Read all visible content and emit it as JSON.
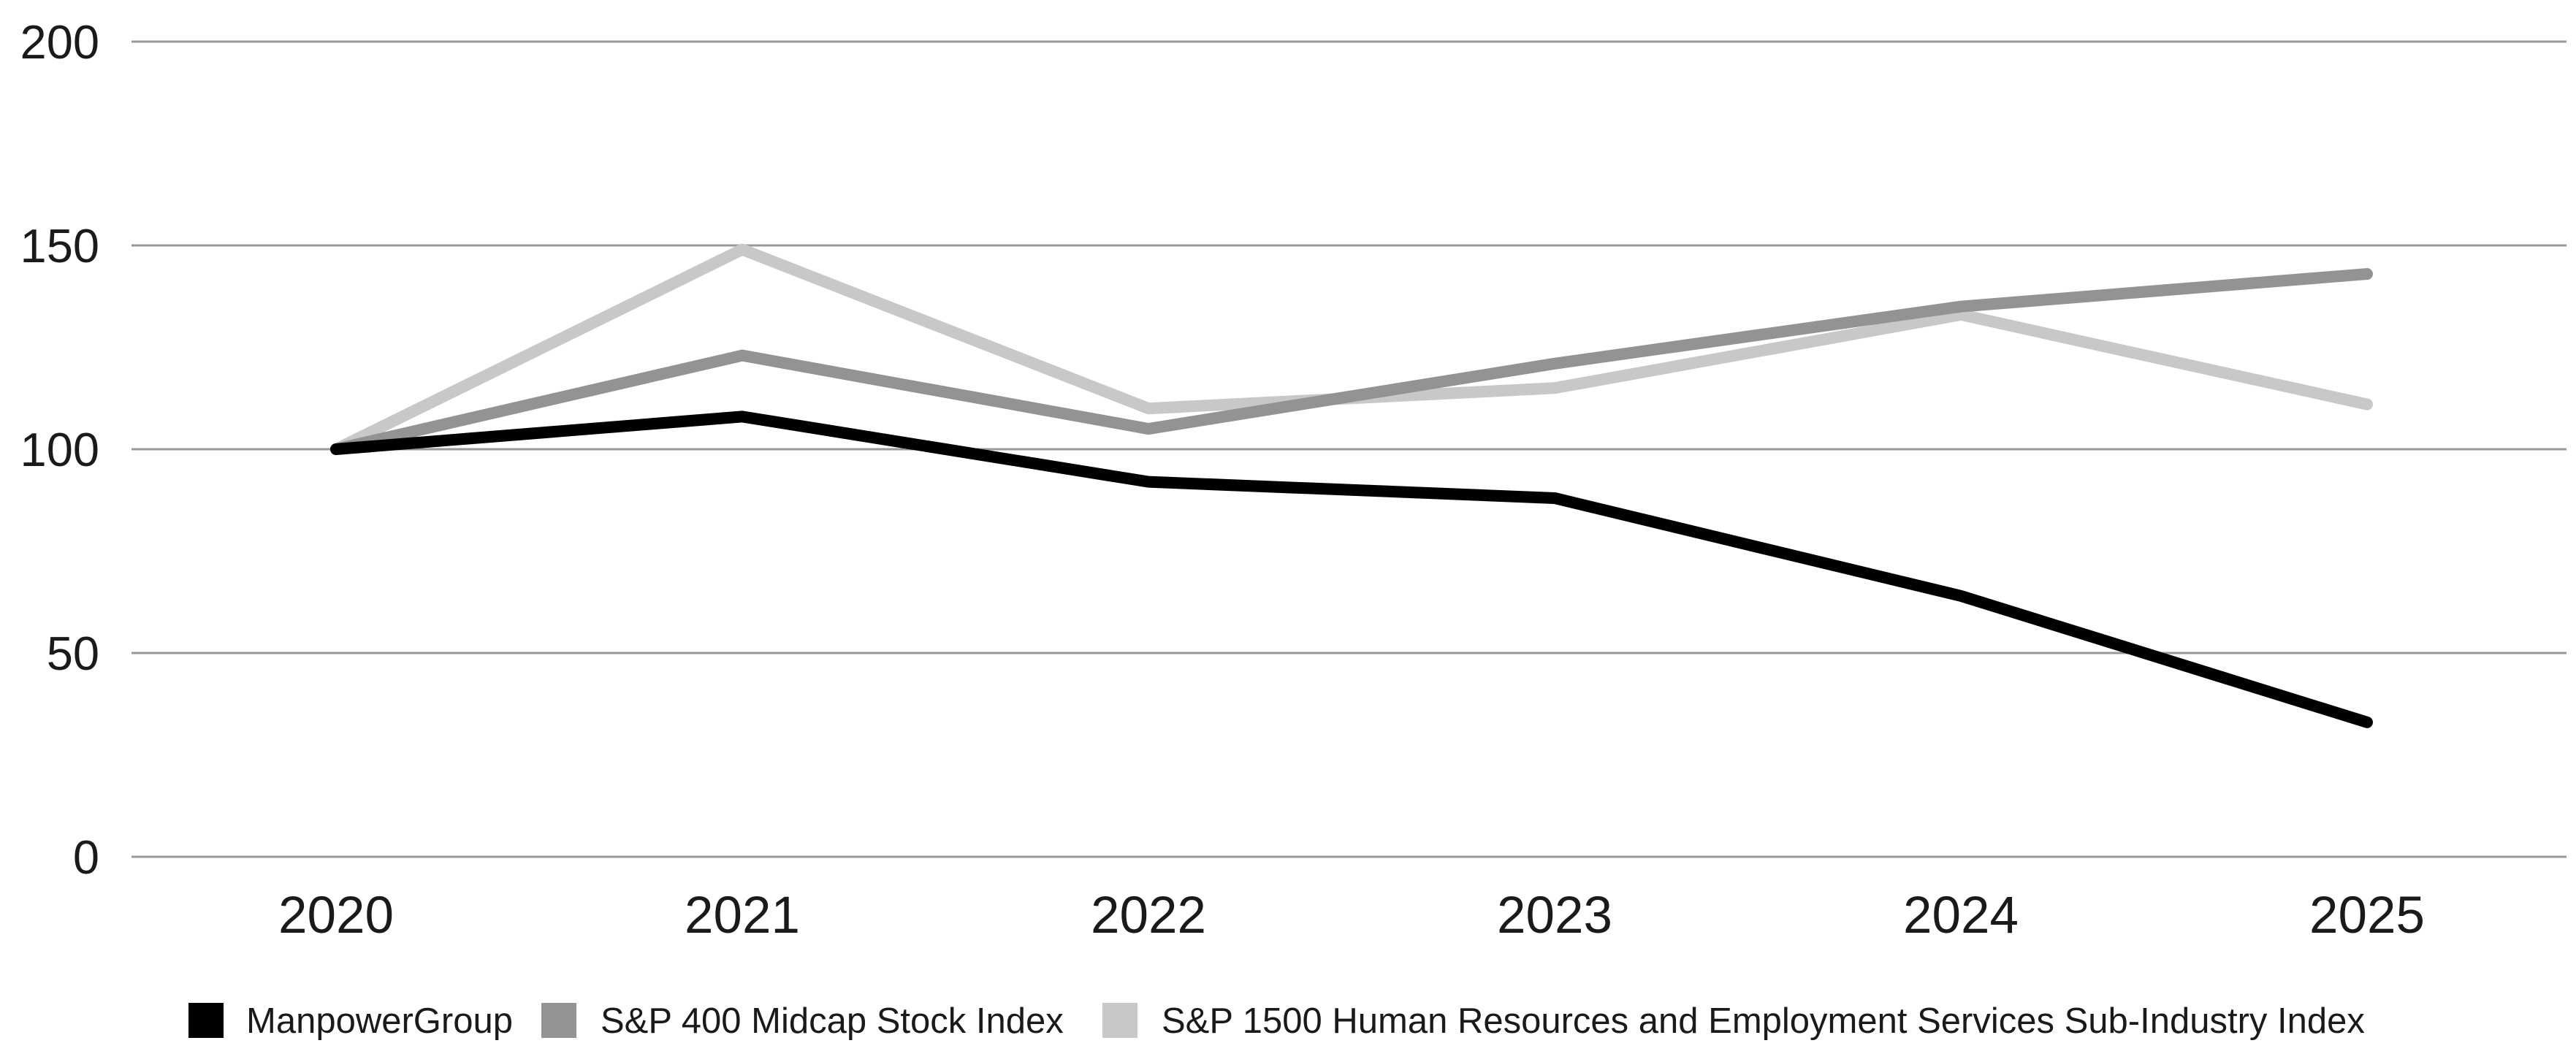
{
  "chart_data": {
    "type": "line",
    "title": "",
    "xlabel": "",
    "ylabel": "",
    "categories": [
      "2020",
      "2021",
      "2022",
      "2023",
      "2024",
      "2025"
    ],
    "ylim": [
      0,
      200
    ],
    "yticks": [
      "0",
      "50",
      "100",
      "150",
      "200"
    ],
    "grid": true,
    "legend_position": "bottom",
    "series": [
      {
        "name": "ManpowerGroup",
        "color": "#000000",
        "values": [
          100,
          108,
          92,
          88,
          64,
          33
        ]
      },
      {
        "name": "S&P 400 Midcap Stock Index",
        "color": "#939395",
        "values": [
          100,
          123,
          105,
          121,
          135,
          143
        ]
      },
      {
        "name": "S&P 1500 Human Resources and Employment Services Sub-Industry Index",
        "color": "#c8c8c8",
        "values": [
          100,
          149,
          110,
          115,
          133,
          111
        ]
      }
    ]
  }
}
